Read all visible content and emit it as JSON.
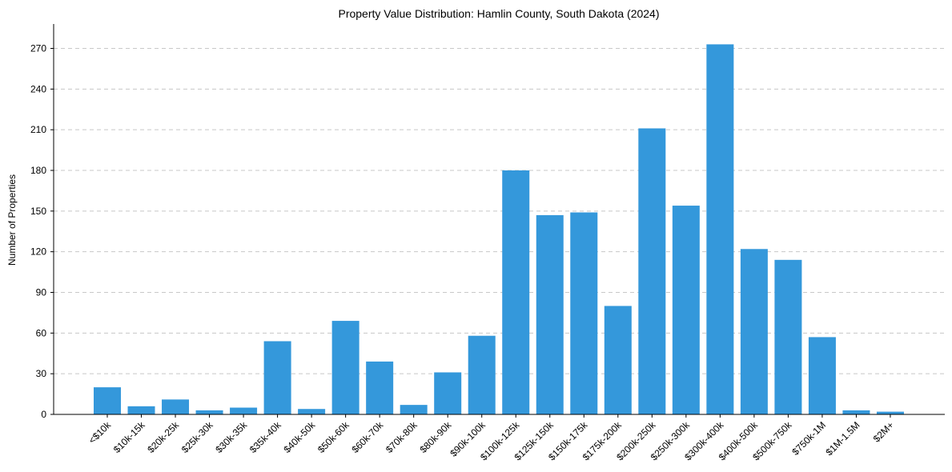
{
  "chart_data": {
    "type": "bar",
    "title": "Property Value Distribution: Hamlin County, South Dakota (2024)",
    "xlabel": "",
    "ylabel": "Number of Properties",
    "ylim": [
      0,
      288
    ],
    "yticks": [
      0,
      30,
      60,
      90,
      120,
      150,
      180,
      210,
      240,
      270
    ],
    "grid": "horizontal dashed",
    "bar_color": "#3498db",
    "categories": [
      "<$10k",
      "$10k-15k",
      "$20k-25k",
      "$25k-30k",
      "$30k-35k",
      "$35k-40k",
      "$40k-50k",
      "$50k-60k",
      "$60k-70k",
      "$70k-80k",
      "$80k-90k",
      "$90k-100k",
      "$100k-125k",
      "$125k-150k",
      "$150k-175k",
      "$175k-200k",
      "$200k-250k",
      "$250k-300k",
      "$300k-400k",
      "$400k-500k",
      "$500k-750k",
      "$750k-1M",
      "$1M-1.5M",
      "$2M+"
    ],
    "values": [
      20,
      6,
      11,
      3,
      5,
      54,
      4,
      69,
      39,
      7,
      31,
      58,
      180,
      147,
      149,
      80,
      211,
      154,
      273,
      122,
      114,
      57,
      3,
      2
    ]
  }
}
